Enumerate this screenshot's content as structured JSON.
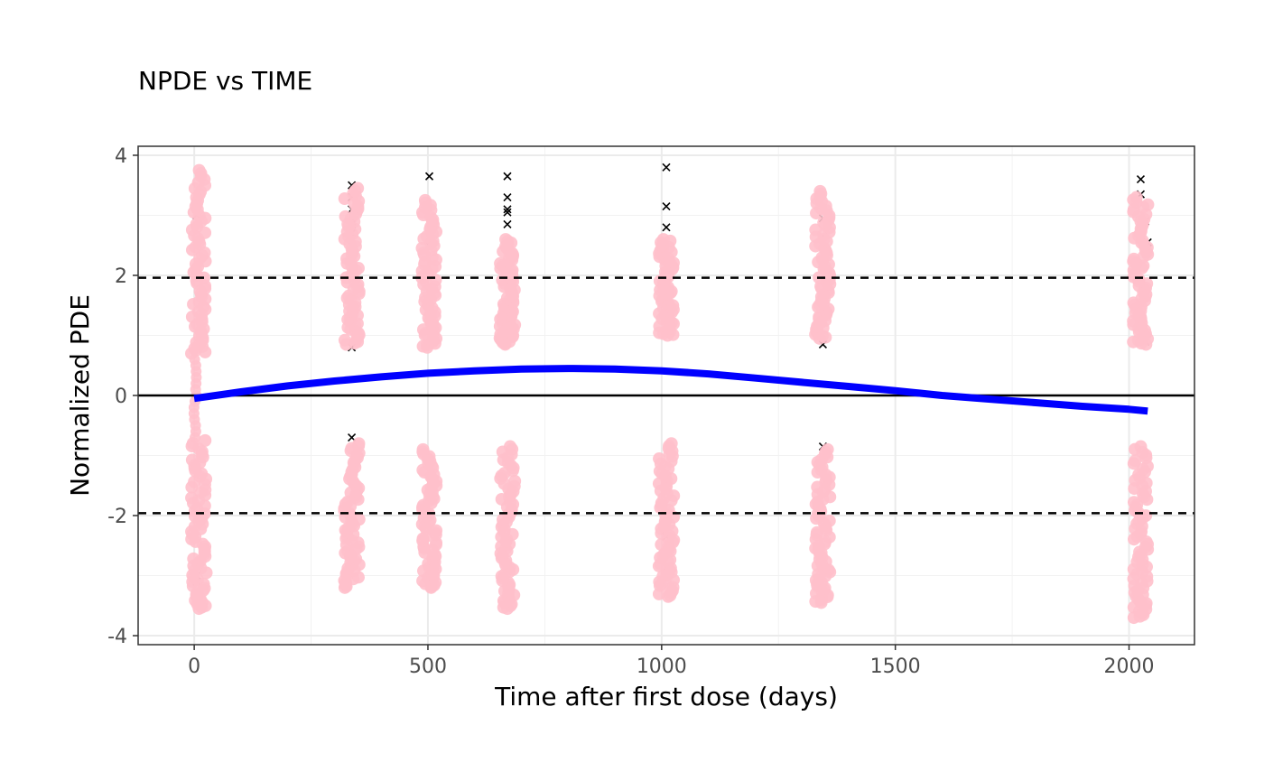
{
  "chart_data": {
    "type": "scatter",
    "title": "NPDE vs TIME",
    "xlabel": "Time after first dose (days)",
    "ylabel": "Normalized PDE",
    "xlim": [
      -120,
      2140
    ],
    "ylim": [
      -4.15,
      4.15
    ],
    "xticks": [
      0,
      500,
      1000,
      1500,
      2000
    ],
    "yticks": [
      -4,
      -2,
      0,
      2,
      4
    ],
    "xtick_labels": [
      "0",
      "500",
      "1000",
      "1500",
      "2000"
    ],
    "ytick_labels": [
      "-4",
      "-2",
      "0",
      "2",
      "4"
    ],
    "grid": true,
    "reference_lines": {
      "zero": 0,
      "dashed": [
        -1.96,
        1.96
      ]
    },
    "colors": {
      "points": "#ffc0cb",
      "cross_marker": "#000000",
      "smooth": "#0000ff",
      "reference": "#000000"
    },
    "series": [
      {
        "marker": "point",
        "groups": [
          {
            "x": 10,
            "pos": [
              0.7,
              3.75
            ],
            "neg": [
              -3.55,
              -0.75
            ]
          },
          {
            "x": 337,
            "pos": [
              0.85,
              3.45
            ],
            "neg": [
              -3.2,
              -0.8
            ]
          },
          {
            "x": 503,
            "pos": [
              0.8,
              3.25
            ],
            "neg": [
              -3.2,
              -0.9
            ]
          },
          {
            "x": 670,
            "pos": [
              0.85,
              2.6
            ],
            "neg": [
              -3.55,
              -0.85
            ]
          },
          {
            "x": 1010,
            "pos": [
              1.0,
              2.6
            ],
            "neg": [
              -3.35,
              -0.8
            ]
          },
          {
            "x": 1345,
            "pos": [
              0.95,
              3.4
            ],
            "neg": [
              -3.45,
              -0.9
            ]
          },
          {
            "x": 2025,
            "pos": [
              0.85,
              3.3
            ],
            "neg": [
              -3.7,
              -0.85
            ]
          }
        ]
      },
      {
        "marker": "cross",
        "points": [
          [
            337,
            3.5
          ],
          [
            337,
            3.3
          ],
          [
            337,
            3.1
          ],
          [
            337,
            2.9
          ],
          [
            337,
            2.85
          ],
          [
            337,
            2.7
          ],
          [
            337,
            2.6
          ],
          [
            337,
            2.5
          ],
          [
            337,
            2.4
          ],
          [
            337,
            0.8
          ],
          [
            337,
            -0.7
          ],
          [
            503,
            3.65
          ],
          [
            503,
            2.5
          ],
          [
            670,
            3.65
          ],
          [
            670,
            3.3
          ],
          [
            670,
            3.1
          ],
          [
            670,
            3.05
          ],
          [
            670,
            2.85
          ],
          [
            670,
            2.5
          ],
          [
            1010,
            3.8
          ],
          [
            1010,
            3.15
          ],
          [
            1010,
            2.8
          ],
          [
            1010,
            -2.35
          ],
          [
            1010,
            -2.85
          ],
          [
            1345,
            2.95
          ],
          [
            1345,
            2.65
          ],
          [
            1345,
            0.85
          ],
          [
            1345,
            -0.85
          ],
          [
            2025,
            3.6
          ],
          [
            2025,
            3.35
          ],
          [
            2035,
            2.9
          ],
          [
            2040,
            2.55
          ],
          [
            2035,
            0.9
          ],
          [
            5,
            -3.0
          ],
          [
            5,
            -3.1
          ],
          [
            5,
            3.0
          ]
        ]
      }
    ],
    "smooth": {
      "x": [
        0,
        100,
        200,
        300,
        400,
        500,
        600,
        700,
        800,
        900,
        1000,
        1100,
        1200,
        1300,
        1400,
        1500,
        1600,
        1700,
        1800,
        1900,
        2000,
        2040
      ],
      "y": [
        -0.05,
        0.06,
        0.16,
        0.24,
        0.31,
        0.37,
        0.41,
        0.44,
        0.45,
        0.44,
        0.41,
        0.36,
        0.29,
        0.22,
        0.15,
        0.08,
        0.0,
        -0.06,
        -0.12,
        -0.18,
        -0.23,
        -0.26
      ]
    }
  }
}
